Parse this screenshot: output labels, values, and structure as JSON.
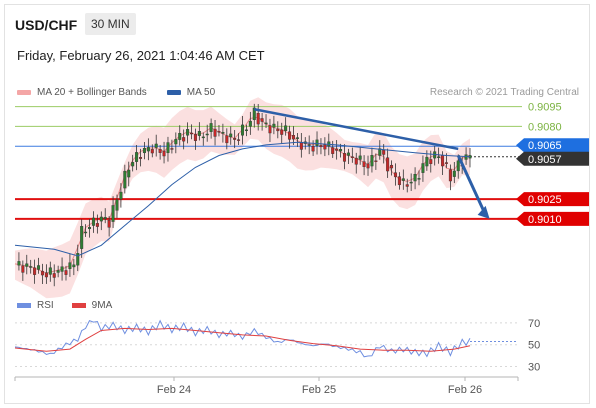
{
  "header": {
    "symbol": "USD/CHF",
    "timeframe": "30 MIN",
    "timestamp": "Friday, February 26, 2021 1:04:46 AM CET"
  },
  "legend": {
    "bollinger_label": "MA 20 + Bollinger Bands",
    "ma50_label": "MA 50",
    "credit": "Research © 2021 Trading Central"
  },
  "rsi_legend": {
    "rsi_label": "RSI",
    "ma_label": "9MA"
  },
  "colors": {
    "bollinger": "#f4a6a6",
    "ma50": "#2d5fa8",
    "up_candle": "#2f7d32",
    "down_candle": "#c62828",
    "resistance_line": "#9ccc65",
    "pivot_line": "#3d7be0",
    "support_line": "#e01010",
    "trend_arrow": "#2d5fa8",
    "rsi": "#6f8fe0",
    "rsi_ma": "#e04040"
  },
  "chart_data": [
    {
      "type": "candlestick",
      "pair": "USD/CHF",
      "interval": "30 MIN",
      "x_ticks": [
        "Feb 24",
        "Feb 25",
        "Feb 26"
      ],
      "ylim": [
        0.896,
        0.9103
      ],
      "price_close_path": [
        {
          "x": 0,
          "y": 0.8975
        },
        {
          "x": 4,
          "y": 0.8973
        },
        {
          "x": 8,
          "y": 0.8968
        },
        {
          "x": 12,
          "y": 0.8971
        },
        {
          "x": 15,
          "y": 0.8975
        },
        {
          "x": 17,
          "y": 0.9
        },
        {
          "x": 19,
          "y": 0.9005
        },
        {
          "x": 22,
          "y": 0.901
        },
        {
          "x": 24,
          "y": 0.9008
        },
        {
          "x": 26,
          "y": 0.9025
        },
        {
          "x": 29,
          "y": 0.905
        },
        {
          "x": 32,
          "y": 0.906
        },
        {
          "x": 35,
          "y": 0.9064
        },
        {
          "x": 38,
          "y": 0.906
        },
        {
          "x": 41,
          "y": 0.907
        },
        {
          "x": 44,
          "y": 0.9075
        },
        {
          "x": 47,
          "y": 0.9072
        },
        {
          "x": 50,
          "y": 0.9078
        },
        {
          "x": 53,
          "y": 0.9073
        },
        {
          "x": 56,
          "y": 0.907
        },
        {
          "x": 59,
          "y": 0.908
        },
        {
          "x": 61,
          "y": 0.909
        },
        {
          "x": 63,
          "y": 0.9082
        },
        {
          "x": 66,
          "y": 0.9078
        },
        {
          "x": 69,
          "y": 0.9076
        },
        {
          "x": 72,
          "y": 0.9068
        },
        {
          "x": 75,
          "y": 0.9065
        },
        {
          "x": 78,
          "y": 0.9066
        },
        {
          "x": 81,
          "y": 0.9063
        },
        {
          "x": 84,
          "y": 0.9058
        },
        {
          "x": 87,
          "y": 0.9055
        },
        {
          "x": 90,
          "y": 0.905
        },
        {
          "x": 93,
          "y": 0.9062
        },
        {
          "x": 96,
          "y": 0.9045
        },
        {
          "x": 99,
          "y": 0.9036
        },
        {
          "x": 102,
          "y": 0.904
        },
        {
          "x": 105,
          "y": 0.9055
        },
        {
          "x": 108,
          "y": 0.9058
        },
        {
          "x": 111,
          "y": 0.9042
        },
        {
          "x": 114,
          "y": 0.9055
        },
        {
          "x": 116,
          "y": 0.9057
        }
      ],
      "candles_shown": 116,
      "ma50_path": [
        {
          "x": 0,
          "y": 0.899
        },
        {
          "x": 10,
          "y": 0.8987
        },
        {
          "x": 16,
          "y": 0.8982
        },
        {
          "x": 22,
          "y": 0.899
        },
        {
          "x": 28,
          "y": 0.9005
        },
        {
          "x": 34,
          "y": 0.902
        },
        {
          "x": 40,
          "y": 0.9036
        },
        {
          "x": 46,
          "y": 0.9049
        },
        {
          "x": 52,
          "y": 0.9058
        },
        {
          "x": 58,
          "y": 0.9063
        },
        {
          "x": 64,
          "y": 0.9066
        },
        {
          "x": 72,
          "y": 0.9068
        },
        {
          "x": 82,
          "y": 0.9066
        },
        {
          "x": 92,
          "y": 0.9063
        },
        {
          "x": 102,
          "y": 0.906
        },
        {
          "x": 110,
          "y": 0.9058
        },
        {
          "x": 116,
          "y": 0.9057
        }
      ],
      "trendline": [
        {
          "x": 61,
          "y": 0.9093
        },
        {
          "x": 113,
          "y": 0.9063
        }
      ],
      "projection_arrow": [
        {
          "x": 113,
          "y": 0.9058
        },
        {
          "x": 121,
          "y": 0.901
        }
      ],
      "levels": [
        {
          "value": 0.9095,
          "label": "0.9095",
          "kind": "resistance"
        },
        {
          "value": 0.908,
          "label": "0.9080",
          "kind": "resistance"
        },
        {
          "value": 0.9065,
          "label": "0.9065",
          "kind": "pivot"
        },
        {
          "value": 0.9057,
          "label": "0.9057",
          "kind": "last"
        },
        {
          "value": 0.9025,
          "label": "0.9025",
          "kind": "support"
        },
        {
          "value": 0.901,
          "label": "0.9010",
          "kind": "support"
        }
      ]
    },
    {
      "type": "line",
      "title": "RSI",
      "y_ticks": [
        70,
        50,
        30
      ],
      "ylim": [
        25,
        80
      ],
      "series": [
        {
          "name": "RSI",
          "values": [
            {
              "x": 0,
              "y": 48
            },
            {
              "x": 5,
              "y": 45
            },
            {
              "x": 9,
              "y": 41
            },
            {
              "x": 13,
              "y": 50
            },
            {
              "x": 16,
              "y": 55
            },
            {
              "x": 18,
              "y": 67
            },
            {
              "x": 20,
              "y": 73
            },
            {
              "x": 22,
              "y": 65
            },
            {
              "x": 25,
              "y": 68
            },
            {
              "x": 28,
              "y": 63
            },
            {
              "x": 31,
              "y": 66
            },
            {
              "x": 34,
              "y": 62
            },
            {
              "x": 37,
              "y": 69
            },
            {
              "x": 40,
              "y": 64
            },
            {
              "x": 43,
              "y": 67
            },
            {
              "x": 46,
              "y": 61
            },
            {
              "x": 49,
              "y": 64
            },
            {
              "x": 52,
              "y": 59
            },
            {
              "x": 55,
              "y": 61
            },
            {
              "x": 58,
              "y": 57
            },
            {
              "x": 61,
              "y": 63
            },
            {
              "x": 64,
              "y": 57
            },
            {
              "x": 67,
              "y": 52
            },
            {
              "x": 70,
              "y": 55
            },
            {
              "x": 73,
              "y": 51
            },
            {
              "x": 76,
              "y": 49
            },
            {
              "x": 79,
              "y": 51
            },
            {
              "x": 82,
              "y": 48
            },
            {
              "x": 85,
              "y": 46
            },
            {
              "x": 88,
              "y": 43
            },
            {
              "x": 90,
              "y": 38
            },
            {
              "x": 93,
              "y": 49
            },
            {
              "x": 96,
              "y": 44
            },
            {
              "x": 99,
              "y": 46
            },
            {
              "x": 102,
              "y": 43
            },
            {
              "x": 105,
              "y": 42
            },
            {
              "x": 108,
              "y": 49
            },
            {
              "x": 111,
              "y": 43
            },
            {
              "x": 114,
              "y": 52
            },
            {
              "x": 116,
              "y": 53
            }
          ]
        },
        {
          "name": "9MA",
          "values": [
            {
              "x": 0,
              "y": 47
            },
            {
              "x": 8,
              "y": 44
            },
            {
              "x": 14,
              "y": 46
            },
            {
              "x": 18,
              "y": 55
            },
            {
              "x": 22,
              "y": 63
            },
            {
              "x": 28,
              "y": 65
            },
            {
              "x": 34,
              "y": 64
            },
            {
              "x": 40,
              "y": 65
            },
            {
              "x": 46,
              "y": 63
            },
            {
              "x": 52,
              "y": 61
            },
            {
              "x": 58,
              "y": 59
            },
            {
              "x": 64,
              "y": 58
            },
            {
              "x": 70,
              "y": 54
            },
            {
              "x": 76,
              "y": 51
            },
            {
              "x": 82,
              "y": 49
            },
            {
              "x": 88,
              "y": 46
            },
            {
              "x": 94,
              "y": 45
            },
            {
              "x": 100,
              "y": 45
            },
            {
              "x": 106,
              "y": 44
            },
            {
              "x": 112,
              "y": 46
            },
            {
              "x": 116,
              "y": 49
            }
          ]
        }
      ]
    }
  ]
}
